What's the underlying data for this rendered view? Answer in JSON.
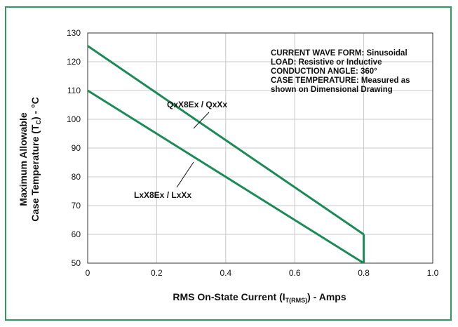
{
  "chart_data": {
    "type": "line",
    "xlabel_parts": [
      "RMS On-State Current (I",
      "T(RMS)",
      ") - Amps"
    ],
    "ylabel_line1": "Maximum Allowable",
    "ylabel_line2_parts": [
      "Case Temperature (T",
      "C",
      ") - °C"
    ],
    "xlim": [
      0,
      1.0
    ],
    "ylim": [
      50,
      130
    ],
    "x_ticks": [
      "0",
      "0.2",
      "0.4",
      "0.6",
      "0.8",
      "1.0"
    ],
    "x_tick_values": [
      0,
      0.2,
      0.4,
      0.6,
      0.8,
      1.0
    ],
    "y_ticks": [
      "50",
      "60",
      "70",
      "80",
      "90",
      "100",
      "110",
      "120",
      "130"
    ],
    "y_tick_values": [
      50,
      60,
      70,
      80,
      90,
      100,
      110,
      120,
      130
    ],
    "grid": true,
    "series": [
      {
        "name": "QxX8Ex / QxXx",
        "x": [
          0,
          0.8
        ],
        "y": [
          125.5,
          60
        ],
        "color": "#1a8a57"
      },
      {
        "name": "LxX8Ex / LxXx",
        "x": [
          0,
          0.8
        ],
        "y": [
          110,
          50
        ],
        "color": "#1a8a57"
      }
    ],
    "drop_line": {
      "x": 0.8,
      "y": [
        60,
        50
      ]
    },
    "series_labels": [
      "QxX8Ex / QxXx",
      "LxX8Ex / LxXx"
    ],
    "annotations": [
      "CURRENT WAVE FORM: Sinusoidal",
      "LOAD: Resistive or Inductive",
      "CONDUCTION ANGLE: 360°",
      "CASE TEMPERATURE: Measured as",
      "shown on Dimensional Drawing"
    ]
  },
  "colors": {
    "frame": "#2e9a5c",
    "series": "#1a8a57",
    "grid": "#c8c8c8",
    "axis": "#333333"
  }
}
